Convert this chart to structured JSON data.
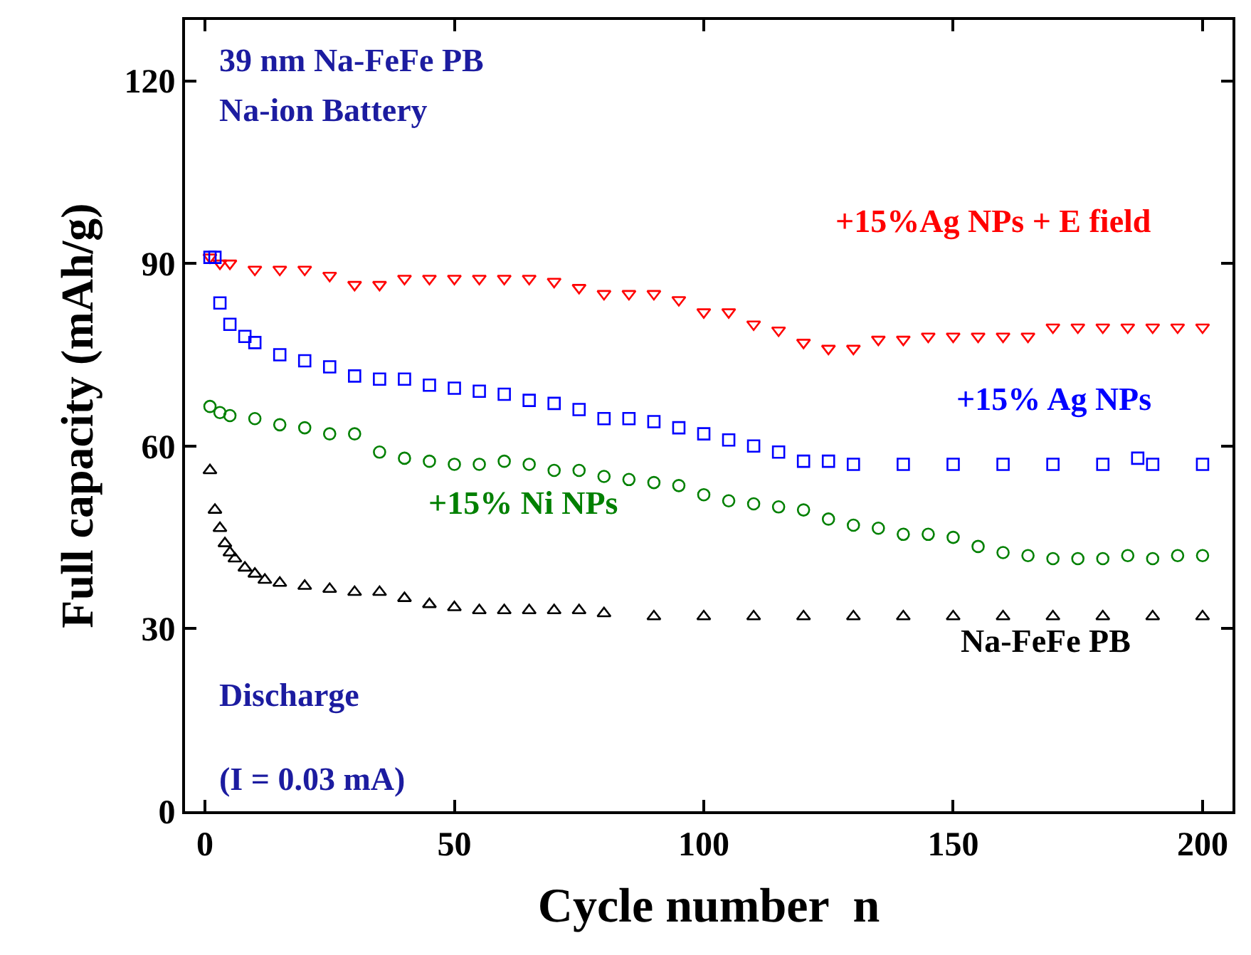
{
  "chart_data": {
    "type": "scatter",
    "title": "39 nm Na-FeFe PB",
    "subtitle": "Na-ion Battery",
    "xlabel": "Cycle number  n",
    "ylabel": "Full capacity (mAh/g)",
    "annotations": [
      "Discharge",
      "(I = 0.03 mA)"
    ],
    "series": [
      {
        "name": "+15%Ag NPs + E field",
        "color": "#ff0000",
        "marker": "triangle-down",
        "x": [
          1,
          3,
          5,
          10,
          15,
          20,
          25,
          30,
          35,
          40,
          45,
          50,
          55,
          60,
          65,
          70,
          75,
          80,
          85,
          90,
          95,
          100,
          105,
          110,
          115,
          120,
          125,
          130,
          135,
          140,
          145,
          150,
          155,
          160,
          165,
          170,
          175,
          180,
          185,
          190,
          195,
          200
        ],
        "values": [
          91,
          90,
          90,
          89,
          89,
          89,
          88,
          86.5,
          86.5,
          87.5,
          87.5,
          87.5,
          87.5,
          87.5,
          87.5,
          87,
          86,
          85,
          85,
          85,
          84,
          82,
          82,
          80,
          79,
          77,
          76,
          76,
          77.5,
          77.5,
          78,
          78,
          78,
          78,
          78,
          79.5,
          79.5,
          79.5,
          79.5,
          79.5,
          79.5,
          79.5
        ]
      },
      {
        "name": "+15% Ag NPs",
        "color": "#0000ff",
        "marker": "square",
        "x": [
          1,
          2,
          3,
          5,
          8,
          10,
          15,
          20,
          25,
          30,
          35,
          40,
          45,
          50,
          55,
          60,
          65,
          70,
          75,
          80,
          85,
          90,
          95,
          100,
          105,
          110,
          115,
          120,
          125,
          130,
          140,
          150,
          160,
          170,
          180,
          187,
          190,
          200
        ],
        "values": [
          91,
          91,
          83.5,
          80,
          78,
          77,
          75,
          74,
          73,
          71.5,
          71,
          71,
          70,
          69.5,
          69,
          68.5,
          67.5,
          67,
          66,
          64.5,
          64.5,
          64,
          63,
          62,
          61,
          60,
          59,
          57.5,
          57.5,
          57,
          57,
          57,
          57,
          57,
          57,
          58,
          57,
          57
        ]
      },
      {
        "name": "+15% Ni NPs",
        "color": "#008000",
        "marker": "circle",
        "x": [
          1,
          3,
          5,
          10,
          15,
          20,
          25,
          30,
          35,
          40,
          45,
          50,
          55,
          60,
          65,
          70,
          75,
          80,
          85,
          90,
          95,
          100,
          105,
          110,
          115,
          120,
          125,
          130,
          135,
          140,
          145,
          150,
          155,
          160,
          165,
          170,
          175,
          180,
          185,
          190,
          195,
          200
        ],
        "values": [
          66.5,
          65.5,
          65,
          64.5,
          63.5,
          63,
          62,
          62,
          59,
          58,
          57.5,
          57,
          57,
          57.5,
          57,
          56,
          56,
          55,
          54.5,
          54,
          53.5,
          52,
          51,
          50.5,
          50,
          49.5,
          48,
          47,
          46.5,
          45.5,
          45.5,
          45,
          43.5,
          42.5,
          42,
          41.5,
          41.5,
          41.5,
          42,
          41.5,
          42,
          42
        ]
      },
      {
        "name": "Na-FeFe PB",
        "color": "#000000",
        "marker": "triangle",
        "x": [
          1,
          2,
          3,
          4,
          5,
          6,
          8,
          10,
          12,
          15,
          20,
          25,
          30,
          35,
          40,
          45,
          50,
          55,
          60,
          65,
          70,
          75,
          80,
          90,
          100,
          110,
          120,
          130,
          140,
          150,
          160,
          170,
          180,
          190,
          200
        ],
        "values": [
          56,
          49.5,
          46.5,
          44,
          42.5,
          41.5,
          40,
          39,
          38,
          37.5,
          37,
          36.5,
          36,
          36,
          35,
          34,
          33.5,
          33,
          33,
          33,
          33,
          33,
          32.5,
          32,
          32,
          32,
          32,
          32,
          32,
          32,
          32,
          32,
          32,
          32,
          32
        ]
      }
    ],
    "xlim": [
      -4,
      206
    ],
    "xticks": [
      0,
      50,
      100,
      150,
      200
    ],
    "ylim": [
      0,
      130
    ],
    "yticks": [
      0,
      30,
      60,
      90,
      120
    ],
    "legend": false
  }
}
